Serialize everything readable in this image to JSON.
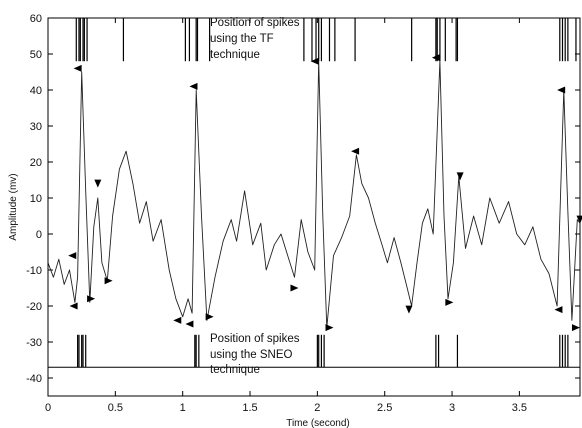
{
  "chart_data": {
    "type": "line",
    "title": "",
    "xlabel": "Time (second)",
    "ylabel": "Amplitude (mv)",
    "xlim": [
      0,
      3.95
    ],
    "ylim": [
      -45,
      60
    ],
    "x_ticks": [
      0,
      0.5,
      1,
      1.5,
      2,
      2.5,
      3,
      3.5
    ],
    "x_tick_labels": [
      "0",
      "0.5",
      "1",
      "1.5",
      "2",
      "2.5",
      "3",
      "3.5"
    ],
    "y_ticks": [
      -40,
      -30,
      -20,
      -10,
      0,
      10,
      20,
      30,
      40,
      50,
      60
    ],
    "y_tick_labels": [
      "-40",
      "-30",
      "-20",
      "-10",
      "0",
      "10",
      "20",
      "30",
      "40",
      "50",
      "60"
    ],
    "grid": false,
    "annotations": {
      "tf_lines": [
        "Position of spikes",
        "using the TF",
        "technique"
      ],
      "sneo_lines": [
        "Position of spikes",
        "using the SNEO",
        "technique"
      ]
    },
    "tf_band": [
      48,
      60
    ],
    "sneo_band": [
      -37,
      -28
    ],
    "series": [
      {
        "values": [
          [
            0.0,
            -8
          ],
          [
            0.04,
            -12
          ],
          [
            0.08,
            -7
          ],
          [
            0.12,
            -14
          ],
          [
            0.16,
            -10
          ],
          [
            0.2,
            -19
          ],
          [
            0.22,
            -12
          ],
          [
            0.25,
            45
          ],
          [
            0.28,
            12
          ],
          [
            0.31,
            -19
          ],
          [
            0.34,
            2
          ],
          [
            0.37,
            10
          ],
          [
            0.4,
            -8
          ],
          [
            0.44,
            -13
          ],
          [
            0.48,
            5
          ],
          [
            0.53,
            18
          ],
          [
            0.58,
            23
          ],
          [
            0.63,
            14
          ],
          [
            0.68,
            3
          ],
          [
            0.73,
            9
          ],
          [
            0.78,
            -2
          ],
          [
            0.84,
            4
          ],
          [
            0.9,
            -10
          ],
          [
            0.95,
            -18
          ],
          [
            1.0,
            -23
          ],
          [
            1.04,
            -18
          ],
          [
            1.07,
            -22
          ],
          [
            1.1,
            40
          ],
          [
            1.14,
            5
          ],
          [
            1.18,
            -24
          ],
          [
            1.24,
            -12
          ],
          [
            1.3,
            -2
          ],
          [
            1.36,
            4
          ],
          [
            1.4,
            -2
          ],
          [
            1.46,
            12
          ],
          [
            1.52,
            -3
          ],
          [
            1.58,
            3
          ],
          [
            1.62,
            -10
          ],
          [
            1.68,
            -3
          ],
          [
            1.73,
            0
          ],
          [
            1.78,
            -6
          ],
          [
            1.83,
            -12
          ],
          [
            1.88,
            4
          ],
          [
            1.93,
            -5
          ],
          [
            1.98,
            -10
          ],
          [
            2.01,
            48
          ],
          [
            2.04,
            5
          ],
          [
            2.07,
            -26
          ],
          [
            2.12,
            -6
          ],
          [
            2.18,
            -1
          ],
          [
            2.24,
            5
          ],
          [
            2.29,
            22
          ],
          [
            2.33,
            14
          ],
          [
            2.38,
            10
          ],
          [
            2.43,
            3
          ],
          [
            2.48,
            -3
          ],
          [
            2.52,
            -8
          ],
          [
            2.57,
            -1
          ],
          [
            2.62,
            -8
          ],
          [
            2.66,
            -14
          ],
          [
            2.7,
            -20
          ],
          [
            2.74,
            -8
          ],
          [
            2.78,
            3
          ],
          [
            2.82,
            7
          ],
          [
            2.86,
            0
          ],
          [
            2.91,
            48
          ],
          [
            2.94,
            5
          ],
          [
            2.97,
            -18
          ],
          [
            3.01,
            -8
          ],
          [
            3.05,
            16
          ],
          [
            3.1,
            -4
          ],
          [
            3.16,
            5
          ],
          [
            3.22,
            -3
          ],
          [
            3.28,
            10
          ],
          [
            3.35,
            3
          ],
          [
            3.42,
            9
          ],
          [
            3.48,
            0
          ],
          [
            3.54,
            -3
          ],
          [
            3.6,
            2
          ],
          [
            3.66,
            -7
          ],
          [
            3.72,
            -11
          ],
          [
            3.78,
            -20
          ],
          [
            3.83,
            40
          ],
          [
            3.86,
            6
          ],
          [
            3.89,
            -24
          ],
          [
            3.93,
            4
          ],
          [
            3.95,
            3
          ]
        ]
      }
    ],
    "tf_spikes": [
      0.21,
      0.23,
      0.24,
      0.26,
      0.27,
      0.29,
      0.56,
      1.02,
      1.05,
      1.1,
      1.11,
      1.2,
      1.9,
      1.96,
      1.99,
      2.01,
      2.03,
      2.09,
      2.13,
      2.28,
      2.7,
      2.88,
      2.89,
      2.91,
      2.95,
      3.03,
      3.04,
      3.8,
      3.82,
      3.84,
      3.86,
      3.92
    ],
    "sneo_spikes": [
      0.22,
      0.23,
      0.25,
      0.26,
      0.28,
      1.09,
      1.1,
      1.12,
      2.0,
      2.01,
      2.03,
      2.05,
      2.88,
      2.9,
      3.04,
      3.8,
      3.82,
      3.84,
      3.86
    ],
    "markers": [
      {
        "x": 0.18,
        "y": -6,
        "dir": "left"
      },
      {
        "x": 0.19,
        "y": -20,
        "dir": "left"
      },
      {
        "x": 0.22,
        "y": 46,
        "dir": "left"
      },
      {
        "x": 0.32,
        "y": -18,
        "dir": "right"
      },
      {
        "x": 0.37,
        "y": 14,
        "dir": "down"
      },
      {
        "x": 0.45,
        "y": -13,
        "dir": "right"
      },
      {
        "x": 0.96,
        "y": -24,
        "dir": "left"
      },
      {
        "x": 1.05,
        "y": -25,
        "dir": "left"
      },
      {
        "x": 1.08,
        "y": 41,
        "dir": "left"
      },
      {
        "x": 1.2,
        "y": -23,
        "dir": "right"
      },
      {
        "x": 1.83,
        "y": -15,
        "dir": "right"
      },
      {
        "x": 1.98,
        "y": 48,
        "dir": "left"
      },
      {
        "x": 2.09,
        "y": -26,
        "dir": "right"
      },
      {
        "x": 2.28,
        "y": 23,
        "dir": "left"
      },
      {
        "x": 2.68,
        "y": -21,
        "dir": "down"
      },
      {
        "x": 2.88,
        "y": 49,
        "dir": "left"
      },
      {
        "x": 2.98,
        "y": -19,
        "dir": "right"
      },
      {
        "x": 3.06,
        "y": 16,
        "dir": "down"
      },
      {
        "x": 3.79,
        "y": -21,
        "dir": "left"
      },
      {
        "x": 3.81,
        "y": 40,
        "dir": "left"
      },
      {
        "x": 3.92,
        "y": -26,
        "dir": "right"
      },
      {
        "x": 3.95,
        "y": 4,
        "dir": "down"
      }
    ]
  }
}
